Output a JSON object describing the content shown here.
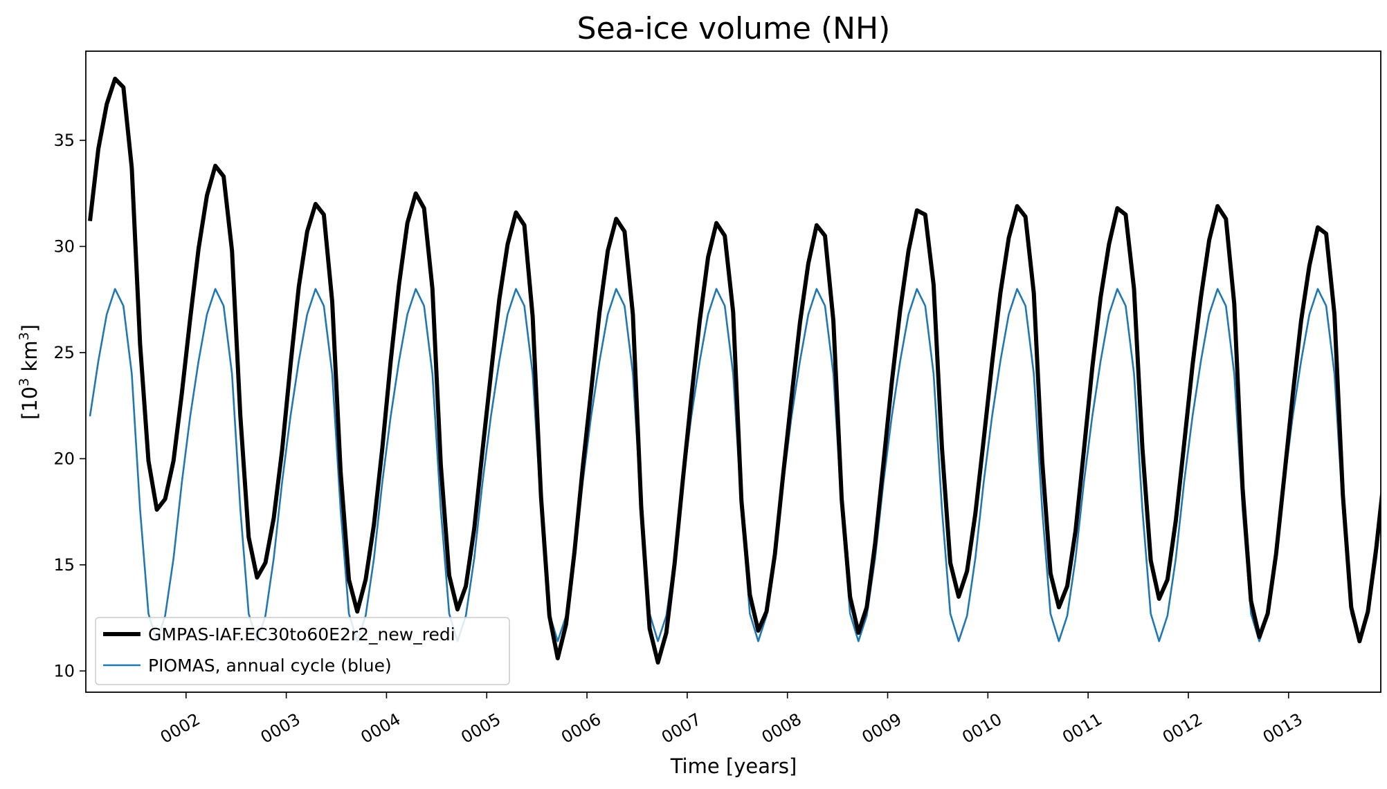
{
  "chart_data": {
    "type": "line",
    "title": "Sea-ice volume (NH)",
    "xlabel": "Time [years]",
    "ylabel_base": "[10",
    "ylabel_sup": "3",
    "ylabel_unit": " km",
    "ylabel_sup2": "3",
    "ylabel_end": "]",
    "xlim": [
      1.0,
      13.92
    ],
    "ylim": [
      9.0,
      39.2
    ],
    "x_ticks": [
      {
        "value": 2,
        "label": "0002"
      },
      {
        "value": 3,
        "label": "0003"
      },
      {
        "value": 4,
        "label": "0004"
      },
      {
        "value": 5,
        "label": "0005"
      },
      {
        "value": 6,
        "label": "0006"
      },
      {
        "value": 7,
        "label": "0007"
      },
      {
        "value": 8,
        "label": "0008"
      },
      {
        "value": 9,
        "label": "0009"
      },
      {
        "value": 10,
        "label": "0010"
      },
      {
        "value": 11,
        "label": "0011"
      },
      {
        "value": 12,
        "label": "0012"
      },
      {
        "value": 13,
        "label": "0013"
      }
    ],
    "y_ticks": [
      {
        "value": 10,
        "label": "10"
      },
      {
        "value": 15,
        "label": "15"
      },
      {
        "value": 20,
        "label": "20"
      },
      {
        "value": 25,
        "label": "25"
      },
      {
        "value": 30,
        "label": "30"
      },
      {
        "value": 35,
        "label": "35"
      }
    ],
    "x_tick_rotation_deg": 30,
    "grid": false,
    "legend_position": "lower-left",
    "piomas_monthly": [
      22.0,
      24.6,
      26.8,
      28.0,
      27.2,
      24.0,
      17.6,
      12.7,
      11.4,
      12.6,
      15.3,
      18.9
    ],
    "series": [
      {
        "name": "GMPAS-IAF.EC30to60E2r2_new_redi",
        "color": "#000000",
        "values": [
          31.2,
          34.6,
          36.7,
          37.9,
          37.5,
          33.7,
          25.4,
          19.9,
          17.6,
          18.1,
          19.9,
          23.1,
          26.6,
          29.9,
          32.4,
          33.8,
          33.3,
          29.8,
          22.0,
          16.3,
          14.4,
          15.1,
          17.2,
          20.4,
          24.4,
          28.1,
          30.7,
          32.0,
          31.5,
          27.4,
          19.4,
          14.3,
          12.8,
          14.3,
          16.9,
          20.5,
          24.6,
          28.2,
          31.1,
          32.5,
          31.8,
          28.0,
          19.7,
          14.5,
          12.9,
          14.0,
          16.7,
          20.4,
          24.0,
          27.5,
          30.1,
          31.6,
          31.0,
          26.7,
          18.2,
          12.6,
          10.6,
          12.2,
          15.6,
          19.6,
          23.2,
          26.9,
          29.8,
          31.3,
          30.7,
          26.8,
          17.7,
          12.0,
          10.4,
          11.8,
          15.1,
          19.1,
          22.9,
          26.5,
          29.5,
          31.1,
          30.5,
          26.9,
          18.0,
          13.6,
          11.9,
          12.8,
          15.5,
          19.3,
          22.9,
          26.4,
          29.2,
          31.0,
          30.5,
          26.5,
          18.1,
          13.5,
          11.8,
          13.0,
          16.0,
          19.8,
          23.6,
          27.0,
          29.8,
          31.7,
          31.5,
          28.2,
          20.5,
          15.1,
          13.5,
          14.7,
          17.4,
          20.9,
          24.5,
          27.8,
          30.4,
          31.9,
          31.4,
          27.8,
          19.9,
          14.6,
          13.0,
          14.0,
          16.6,
          20.4,
          24.3,
          27.6,
          30.1,
          31.8,
          31.5,
          28.0,
          20.5,
          15.2,
          13.4,
          14.3,
          17.1,
          20.7,
          24.4,
          27.6,
          30.3,
          31.9,
          31.3,
          27.3,
          18.6,
          13.3,
          11.6,
          12.7,
          15.5,
          19.2,
          23.0,
          26.5,
          29.1,
          30.9,
          30.6,
          26.8,
          18.3,
          13.0,
          11.4,
          12.8,
          15.8,
          19.4
        ]
      },
      {
        "name": "PIOMAS, annual cycle (blue)",
        "color": "#1f77b4",
        "values_note_from": "piomas_monthly"
      }
    ]
  }
}
